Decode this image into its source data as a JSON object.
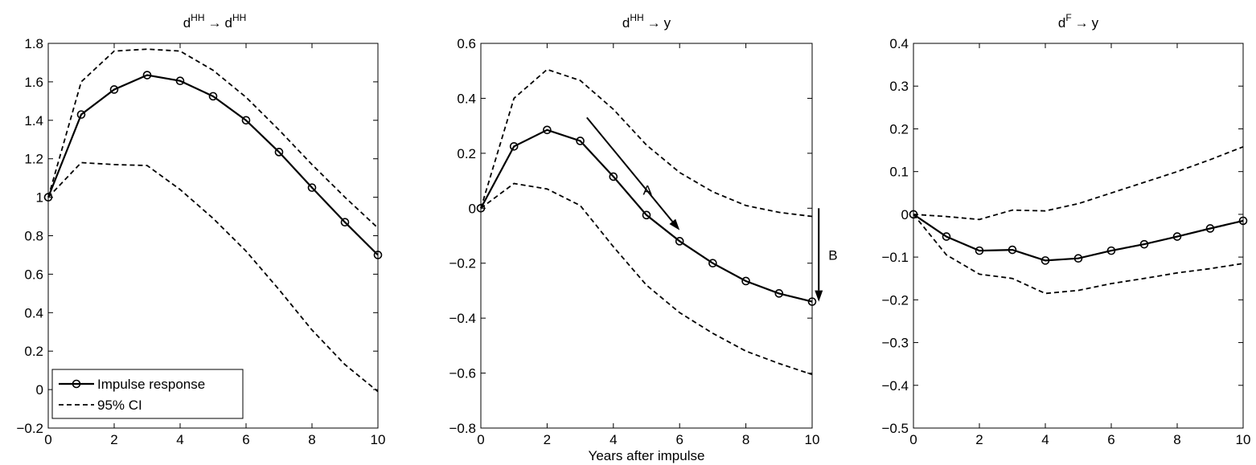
{
  "chart_data": [
    {
      "type": "line",
      "title_main": "d",
      "title_sup1": "HH",
      "title_arrow": "→",
      "title_tail": "d",
      "title_sup2": "HH",
      "xlabel": "",
      "x": [
        0,
        1,
        2,
        3,
        4,
        5,
        6,
        7,
        8,
        9,
        10
      ],
      "xlim": [
        0,
        10
      ],
      "ylim": [
        -0.2,
        1.8
      ],
      "xticks": [
        0,
        2,
        4,
        6,
        8,
        10
      ],
      "yticks": [
        -0.2,
        0,
        0.2,
        0.4,
        0.6,
        0.8,
        1,
        1.2,
        1.4,
        1.6,
        1.8
      ],
      "ytick_labels": [
        "−0.2",
        "0",
        "0.2",
        "0.4",
        "0.6",
        "0.8",
        "1",
        "1.2",
        "1.4",
        "1.6",
        "1.8"
      ],
      "series": [
        {
          "name": "Impulse response",
          "style": "solid-marker",
          "values": [
            1.0,
            1.43,
            1.56,
            1.635,
            1.605,
            1.525,
            1.4,
            1.235,
            1.05,
            0.87,
            0.7
          ]
        },
        {
          "name": "95% CI",
          "style": "dashed",
          "values": [
            1.0,
            1.6,
            1.76,
            1.77,
            1.76,
            1.66,
            1.52,
            1.35,
            1.17,
            1.0,
            0.84
          ]
        },
        {
          "style": "dashed",
          "values": [
            1.0,
            1.18,
            1.17,
            1.165,
            1.04,
            0.89,
            0.72,
            0.52,
            0.31,
            0.13,
            -0.01
          ]
        }
      ],
      "legend": {
        "placement": "bottom-left",
        "entries": [
          "Impulse response",
          "95% CI"
        ]
      },
      "annotations": []
    },
    {
      "type": "line",
      "title_main": "d",
      "title_sup1": "HH",
      "title_arrow": "→",
      "title_tail": "y",
      "title_sup2": "",
      "xlabel": "Years after impulse",
      "x": [
        0,
        1,
        2,
        3,
        4,
        5,
        6,
        7,
        8,
        9,
        10
      ],
      "xlim": [
        0,
        10
      ],
      "ylim": [
        -0.8,
        0.6
      ],
      "xticks": [
        0,
        2,
        4,
        6,
        8,
        10
      ],
      "yticks": [
        -0.8,
        -0.6,
        -0.4,
        -0.2,
        0,
        0.2,
        0.4,
        0.6
      ],
      "ytick_labels": [
        "−0.8",
        "−0.6",
        "−0.4",
        "−0.2",
        "0",
        "0.2",
        "0.4",
        "0.6"
      ],
      "series": [
        {
          "name": "Impulse response",
          "style": "solid-marker",
          "values": [
            0.0,
            0.225,
            0.285,
            0.245,
            0.115,
            -0.025,
            -0.12,
            -0.2,
            -0.265,
            -0.31,
            -0.34
          ]
        },
        {
          "name": "95% CI",
          "style": "dashed",
          "values": [
            0.0,
            0.4,
            0.505,
            0.465,
            0.36,
            0.23,
            0.13,
            0.06,
            0.01,
            -0.015,
            -0.03
          ]
        },
        {
          "style": "dashed",
          "values": [
            0.0,
            0.09,
            0.07,
            0.01,
            -0.14,
            -0.28,
            -0.38,
            -0.455,
            -0.52,
            -0.565,
            -0.605
          ]
        }
      ],
      "annotations": [
        {
          "label": "A",
          "from": [
            3.2,
            0.33
          ],
          "to": [
            6.0,
            -0.08
          ]
        },
        {
          "label": "B",
          "from": [
            10.2,
            0.0
          ],
          "to": [
            10.2,
            -0.34
          ]
        }
      ]
    },
    {
      "type": "line",
      "title_main": "d",
      "title_sup1": "F",
      "title_arrow": "→",
      "title_tail": "y",
      "title_sup2": "",
      "xlabel": "",
      "x": [
        0,
        1,
        2,
        3,
        4,
        5,
        6,
        7,
        8,
        9,
        10
      ],
      "xlim": [
        0,
        10
      ],
      "ylim": [
        -0.5,
        0.4
      ],
      "xticks": [
        0,
        2,
        4,
        6,
        8,
        10
      ],
      "yticks": [
        -0.5,
        -0.4,
        -0.3,
        -0.2,
        -0.1,
        0,
        0.1,
        0.2,
        0.3,
        0.4
      ],
      "ytick_labels": [
        "−0.5",
        "−0.4",
        "−0.3",
        "−0.2",
        "−0.1",
        "0",
        "0.1",
        "0.2",
        "0.3",
        "0.4"
      ],
      "series": [
        {
          "name": "Impulse response",
          "style": "solid-marker",
          "values": [
            0.0,
            -0.052,
            -0.085,
            -0.083,
            -0.108,
            -0.103,
            -0.085,
            -0.07,
            -0.052,
            -0.033,
            -0.015
          ]
        },
        {
          "name": "95% CI",
          "style": "dashed",
          "values": [
            0.0,
            -0.005,
            -0.012,
            0.01,
            0.008,
            0.025,
            0.05,
            0.075,
            0.1,
            0.128,
            0.158
          ]
        },
        {
          "style": "dashed",
          "values": [
            0.0,
            -0.095,
            -0.14,
            -0.15,
            -0.185,
            -0.178,
            -0.162,
            -0.15,
            -0.137,
            -0.127,
            -0.115
          ]
        }
      ],
      "annotations": []
    }
  ]
}
